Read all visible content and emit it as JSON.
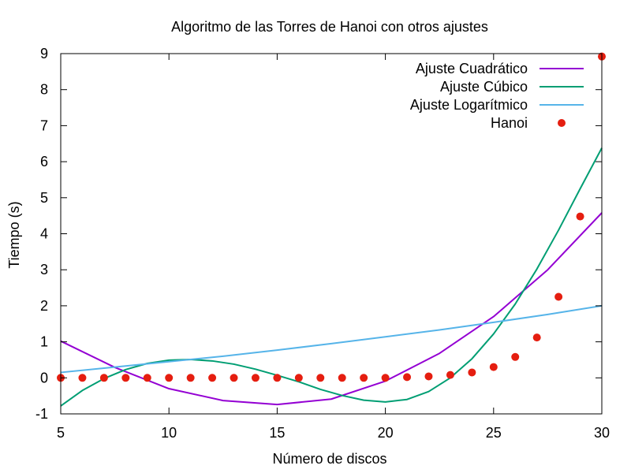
{
  "chart_data": {
    "type": "scatter",
    "title": "Algoritmo de las Torres de Hanoi con otros ajustes",
    "xlabel": "Número de discos",
    "ylabel": "Tiempo (s)",
    "xlim": [
      5,
      30
    ],
    "ylim": [
      -1,
      9
    ],
    "xticks": [
      "5",
      "10",
      "15",
      "20",
      "25",
      "30"
    ],
    "yticks": [
      "-1",
      "0",
      "1",
      "2",
      "3",
      "4",
      "5",
      "6",
      "7",
      "8",
      "9"
    ],
    "legend_position": "top-right",
    "grid": false,
    "series": [
      {
        "name": "Ajuste Cuadrático",
        "kind": "line",
        "color": "#9400d3",
        "x": [
          5,
          7.5,
          10,
          12.5,
          15,
          17.5,
          20,
          22.5,
          25,
          27.5,
          30
        ],
        "y": [
          1.02,
          0.29,
          -0.3,
          -0.63,
          -0.74,
          -0.59,
          -0.09,
          0.68,
          1.7,
          3.0,
          4.58
        ]
      },
      {
        "name": "Ajuste Cúbico",
        "kind": "line",
        "color": "#009e73",
        "x": [
          5,
          6,
          7,
          8,
          9,
          10,
          11,
          12,
          13,
          14,
          15,
          16,
          17,
          18,
          19,
          20,
          21,
          22,
          23,
          24,
          25,
          26,
          27,
          28,
          29,
          30
        ],
        "y": [
          -0.78,
          -0.35,
          -0.02,
          0.23,
          0.4,
          0.49,
          0.51,
          0.47,
          0.38,
          0.24,
          0.07,
          -0.11,
          -0.32,
          -0.49,
          -0.62,
          -0.67,
          -0.6,
          -0.38,
          0.0,
          0.53,
          1.22,
          2.05,
          3.02,
          4.1,
          5.25,
          6.38
        ]
      },
      {
        "name": "Ajuste Logarítmico",
        "kind": "line",
        "color": "#56b4e9",
        "x": [
          5,
          7.5,
          10,
          12.5,
          15,
          17.5,
          20,
          22.5,
          25,
          27.5,
          30
        ],
        "y": [
          0.15,
          0.3,
          0.45,
          0.6,
          0.77,
          0.95,
          1.14,
          1.33,
          1.54,
          1.76,
          2.0
        ]
      },
      {
        "name": "Hanoi",
        "kind": "points",
        "color": "#e51e10",
        "x": [
          5,
          6,
          7,
          8,
          9,
          10,
          11,
          12,
          13,
          14,
          15,
          16,
          17,
          18,
          19,
          20,
          21,
          22,
          23,
          24,
          25,
          26,
          27,
          28,
          29,
          30
        ],
        "y": [
          0,
          0,
          0,
          0,
          0,
          0,
          0,
          0,
          0,
          0,
          0,
          0,
          0,
          0,
          0,
          0,
          0.02,
          0.04,
          0.08,
          0.15,
          0.3,
          0.58,
          1.12,
          2.25,
          4.48,
          8.92
        ]
      }
    ]
  }
}
